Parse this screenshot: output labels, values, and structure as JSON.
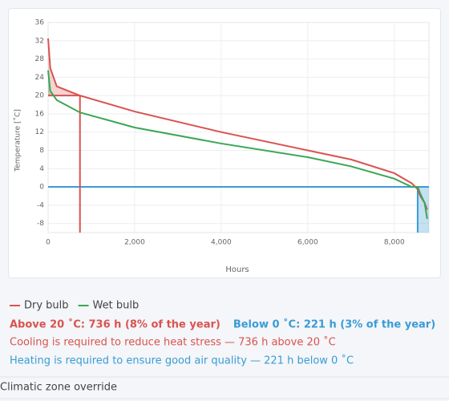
{
  "chart_data": {
    "type": "line",
    "x_label": "Hours",
    "y_label": "Temperature [˚C]",
    "x": [
      0,
      50,
      200,
      736,
      2000,
      4000,
      6000,
      7000,
      8000,
      8400,
      8539,
      8600,
      8700,
      8760
    ],
    "series": [
      {
        "name": "Dry bulb",
        "color": "#d9534f",
        "values": [
          32.5,
          26,
          22,
          20,
          16.5,
          12,
          8,
          6,
          3,
          0.8,
          -0.5,
          -2,
          -3.5,
          -5
        ]
      },
      {
        "name": "Wet bulb",
        "color": "#3aa655",
        "values": [
          25.5,
          21,
          19,
          16.3,
          13,
          9.5,
          6.5,
          4.5,
          1.8,
          0,
          0,
          -1.5,
          -3.5,
          -7
        ]
      }
    ],
    "xlim": [
      0,
      8800
    ],
    "ylim": [
      -10,
      36
    ],
    "xticks": [
      0,
      {
        "value": 2000,
        "label": "2,000"
      },
      {
        "value": 4000,
        "label": "4,000"
      },
      {
        "value": 6000,
        "label": "6,000"
      },
      {
        "value": 8000,
        "label": "8,000"
      }
    ],
    "yticks": [
      -8,
      -4,
      0,
      4,
      8,
      12,
      16,
      20,
      24,
      28,
      32,
      36
    ],
    "grid": true,
    "annotations": [
      {
        "x": 736,
        "y": 20,
        "color": "#d9534f",
        "text": "Above 20 ˚C: 736 h (8% of the year)",
        "note": "Cooling is required to reduce heat stress — 736 h above 20 ˚C"
      },
      {
        "x": 8539,
        "y": 0,
        "color": "#3a9bd5",
        "text": "Below 0 ˚C: 221 h (3% of the year)",
        "note": "Heating is required to ensure good air quality — 221 h below 0 ˚C"
      }
    ]
  },
  "section": "Climatic zone override"
}
